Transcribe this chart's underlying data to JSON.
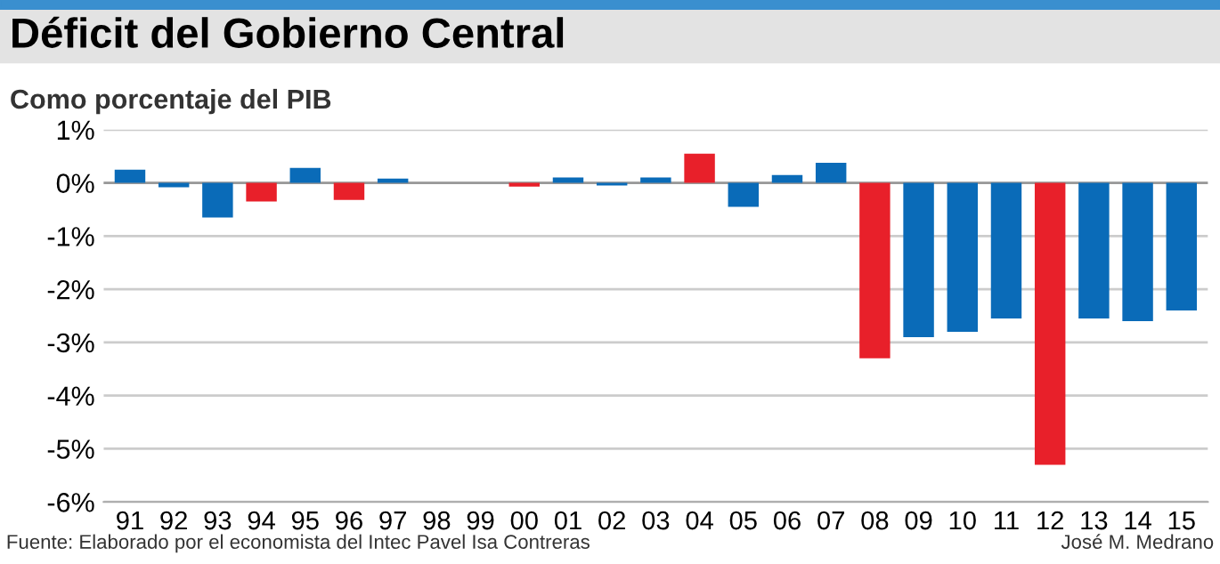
{
  "chart_data": {
    "type": "bar",
    "title": "Déficit del Gobierno Central",
    "subtitle": "Como porcentaje del PIB",
    "categories": [
      "91",
      "92",
      "93",
      "94",
      "95",
      "96",
      "97",
      "98",
      "99",
      "00",
      "01",
      "02",
      "03",
      "04",
      "05",
      "06",
      "07",
      "08",
      "09",
      "10",
      "11",
      "12",
      "13",
      "14",
      "15"
    ],
    "values": [
      0.25,
      -0.08,
      -0.65,
      -0.35,
      0.28,
      -0.32,
      0.08,
      0,
      0,
      -0.07,
      0.1,
      -0.05,
      0.1,
      0.55,
      -0.45,
      0.15,
      0.38,
      -3.3,
      -2.9,
      -2.8,
      -2.55,
      -5.3,
      -2.55,
      -2.6,
      -2.4
    ],
    "colors": [
      "#0a6bb8",
      "#0a6bb8",
      "#0a6bb8",
      "#e8202a",
      "#0a6bb8",
      "#e8202a",
      "#0a6bb8",
      "#0a6bb8",
      "#0a6bb8",
      "#e8202a",
      "#0a6bb8",
      "#0a6bb8",
      "#0a6bb8",
      "#e8202a",
      "#0a6bb8",
      "#0a6bb8",
      "#0a6bb8",
      "#e8202a",
      "#0a6bb8",
      "#0a6bb8",
      "#0a6bb8",
      "#e8202a",
      "#0a6bb8",
      "#0a6bb8",
      "#0a6bb8"
    ],
    "ylim": [
      -6,
      1
    ],
    "yticks": [
      {
        "value": 1,
        "label": "1%"
      },
      {
        "value": 0,
        "label": "0%"
      },
      {
        "value": -1,
        "label": "-1%"
      },
      {
        "value": -2,
        "label": "-2%"
      },
      {
        "value": -3,
        "label": "-3%"
      },
      {
        "value": -4,
        "label": "-4%"
      },
      {
        "value": -5,
        "label": "-5%"
      },
      {
        "value": -6,
        "label": "-6%"
      }
    ],
    "grid": "y",
    "annotations": [
      "Fuente: Elaborado por el economista del Intec Pavel Isa Contreras",
      "José M. Medrano"
    ]
  }
}
